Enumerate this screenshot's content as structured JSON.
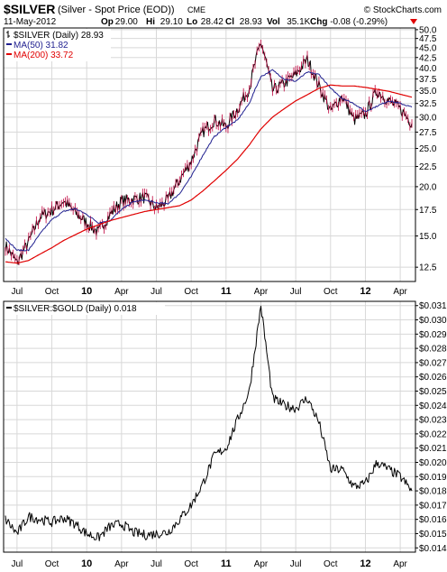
{
  "header": {
    "symbol": "$SILVER",
    "description": "(Silver - Spot Price (EOD))",
    "exchange": "CME",
    "watermark": "© StockCharts.com",
    "date": "11-May-2012",
    "quote": [
      {
        "label": "Op",
        "value": "29.00"
      },
      {
        "label": "Hi",
        "value": "29.10"
      },
      {
        "label": "Lo",
        "value": "28.42"
      },
      {
        "label": "Cl",
        "value": "28.93"
      },
      {
        "label": "Vol",
        "value": "35.1K"
      },
      {
        "label": "Chg",
        "value": "-0.08 (-0.29%)"
      }
    ],
    "chg_icon": "down-triangle-icon"
  },
  "colors": {
    "price": "#000000",
    "ma50": "#1f1f8f",
    "ma200": "#e00000",
    "wick": "#c0003c",
    "grid": "#d8d8d8",
    "frame": "#000000"
  },
  "chart_data": [
    {
      "type": "line",
      "title": "$SILVER (Daily) 28.93",
      "scale": "log",
      "ylim": [
        11.5,
        50.5
      ],
      "y_ticks": [
        "50.0",
        "47.5",
        "45.0",
        "42.5",
        "40.0",
        "37.5",
        "35.0",
        "32.5",
        "30.0",
        "27.5",
        "25.0",
        "22.5",
        "20.0",
        "17.5",
        "15.0",
        "12.5"
      ],
      "x_ticks": [
        "Jul",
        "Oct",
        "10",
        "Apr",
        "Jul",
        "Oct",
        "11",
        "Apr",
        "Jul",
        "Oct",
        "12",
        "Apr"
      ],
      "bold_x_ticks": [
        "10",
        "11",
        "12"
      ],
      "legend": [
        {
          "label": "$SILVER (Daily) 28.93"
        },
        {
          "label": "MA(50) 31.82"
        },
        {
          "label": "MA(200) 33.72"
        }
      ],
      "series": [
        {
          "name": "$SILVER (Daily)",
          "x": [
            "Jun-2009",
            "Jul-2009",
            "Aug-2009",
            "Sep-2009",
            "Oct-2009",
            "Nov-2009",
            "Dec-2009",
            "Jan-2010",
            "Feb-2010",
            "Mar-2010",
            "Apr-2010",
            "May-2010",
            "Jun-2010",
            "Jul-2010",
            "Aug-2010",
            "Sep-2010",
            "Oct-2010",
            "Nov-2010",
            "Dec-2010",
            "Jan-2011",
            "Feb-2011",
            "Mar-2011",
            "Apr-2011",
            "May-2011",
            "Jun-2011",
            "Jul-2011",
            "Aug-2011",
            "Sep-2011",
            "Oct-2011",
            "Nov-2011",
            "Dec-2011",
            "Jan-2012",
            "Feb-2012",
            "Mar-2012",
            "Apr-2012",
            "May-2012"
          ],
          "values": [
            14.2,
            12.8,
            14.5,
            16.8,
            17.4,
            18.4,
            17.2,
            16.2,
            15.3,
            17.0,
            18.4,
            18.6,
            18.8,
            17.6,
            18.5,
            20.8,
            23.2,
            27.5,
            29.5,
            28.4,
            31.5,
            35.5,
            46.5,
            35.0,
            36.5,
            38.5,
            42.0,
            36.0,
            31.0,
            34.0,
            29.5,
            30.5,
            35.0,
            33.0,
            31.5,
            28.93
          ]
        },
        {
          "name": "MA(50)",
          "x": [
            "Jun-2009",
            "Jul-2009",
            "Aug-2009",
            "Sep-2009",
            "Oct-2009",
            "Nov-2009",
            "Dec-2009",
            "Jan-2010",
            "Feb-2010",
            "Mar-2010",
            "Apr-2010",
            "May-2010",
            "Jun-2010",
            "Jul-2010",
            "Aug-2010",
            "Sep-2010",
            "Oct-2010",
            "Nov-2010",
            "Dec-2010",
            "Jan-2011",
            "Feb-2011",
            "Mar-2011",
            "Apr-2011",
            "May-2011",
            "Jun-2011",
            "Jul-2011",
            "Aug-2011",
            "Sep-2011",
            "Oct-2011",
            "Nov-2011",
            "Dec-2011",
            "Jan-2012",
            "Feb-2012",
            "Mar-2012",
            "Apr-2012",
            "May-2012"
          ],
          "values": [
            14.8,
            13.8,
            13.8,
            15.2,
            16.5,
            17.3,
            17.6,
            17.0,
            16.2,
            16.4,
            17.5,
            18.3,
            18.5,
            18.2,
            18.1,
            19.2,
            21.2,
            24.0,
            26.8,
            28.3,
            29.5,
            32.5,
            38.0,
            39.5,
            37.5,
            37.0,
            39.0,
            38.5,
            35.5,
            33.5,
            32.5,
            31.0,
            32.0,
            33.0,
            32.5,
            31.82
          ]
        },
        {
          "name": "MA(200)",
          "x": [
            "Jun-2009",
            "Jul-2009",
            "Aug-2009",
            "Sep-2009",
            "Oct-2009",
            "Nov-2009",
            "Dec-2009",
            "Jan-2010",
            "Feb-2010",
            "Mar-2010",
            "Apr-2010",
            "May-2010",
            "Jun-2010",
            "Jul-2010",
            "Aug-2010",
            "Sep-2010",
            "Oct-2010",
            "Nov-2010",
            "Dec-2010",
            "Jan-2011",
            "Feb-2011",
            "Mar-2011",
            "Apr-2011",
            "May-2011",
            "Jun-2011",
            "Jul-2011",
            "Aug-2011",
            "Sep-2011",
            "Oct-2011",
            "Nov-2011",
            "Dec-2011",
            "Jan-2012",
            "Feb-2012",
            "Mar-2012",
            "Apr-2012",
            "May-2012"
          ],
          "values": [
            12.9,
            12.8,
            13.0,
            13.5,
            14.0,
            14.6,
            15.1,
            15.6,
            16.0,
            16.4,
            16.7,
            17.0,
            17.3,
            17.5,
            17.7,
            17.9,
            18.5,
            19.5,
            20.7,
            22.0,
            23.5,
            25.5,
            28.0,
            30.0,
            31.5,
            33.0,
            34.2,
            35.5,
            36.2,
            36.0,
            36.0,
            35.7,
            35.3,
            34.9,
            34.3,
            33.72
          ]
        }
      ]
    },
    {
      "type": "line",
      "title": "$SILVER:$GOLD (Daily) 0.018",
      "ylim": [
        0.0137,
        0.0313
      ],
      "y_ticks": [
        "$0.031",
        "$0.030",
        "$0.029",
        "$0.028",
        "$0.027",
        "$0.026",
        "$0.025",
        "$0.024",
        "$0.023",
        "$0.022",
        "$0.021",
        "$0.020",
        "$0.019",
        "$0.018",
        "$0.017",
        "$0.016",
        "$0.015",
        "$0.014"
      ],
      "x_ticks": [
        "Jul",
        "Oct",
        "10",
        "Apr",
        "Jul",
        "Oct",
        "11",
        "Apr",
        "Jul",
        "Oct",
        "12",
        "Apr"
      ],
      "bold_x_ticks": [
        "10",
        "11",
        "12"
      ],
      "legend": [
        {
          "label": "$SILVER:$GOLD (Daily) 0.018"
        }
      ],
      "series": [
        {
          "name": "$SILVER:$GOLD (Daily)",
          "x": [
            "Jun-2009",
            "Jul-2009",
            "Aug-2009",
            "Sep-2009",
            "Oct-2009",
            "Nov-2009",
            "Dec-2009",
            "Jan-2010",
            "Feb-2010",
            "Mar-2010",
            "Apr-2010",
            "May-2010",
            "Jun-2010",
            "Jul-2010",
            "Aug-2010",
            "Sep-2010",
            "Oct-2010",
            "Nov-2010",
            "Dec-2010",
            "Jan-2011",
            "Feb-2011",
            "Mar-2011",
            "Apr-2011",
            "May-2011",
            "Jun-2011",
            "Jul-2011",
            "Aug-2011",
            "Sep-2011",
            "Oct-2011",
            "Nov-2011",
            "Dec-2011",
            "Jan-2012",
            "Feb-2012",
            "Mar-2012",
            "Apr-2012",
            "May-2012"
          ],
          "values": [
            0.016,
            0.015,
            0.0162,
            0.016,
            0.0158,
            0.0161,
            0.0157,
            0.015,
            0.0147,
            0.0155,
            0.0157,
            0.0151,
            0.0149,
            0.015,
            0.0151,
            0.016,
            0.017,
            0.0185,
            0.0205,
            0.021,
            0.023,
            0.025,
            0.031,
            0.0245,
            0.024,
            0.0238,
            0.0245,
            0.0228,
            0.0195,
            0.0195,
            0.0183,
            0.0185,
            0.02,
            0.0195,
            0.019,
            0.018
          ]
        }
      ]
    }
  ]
}
